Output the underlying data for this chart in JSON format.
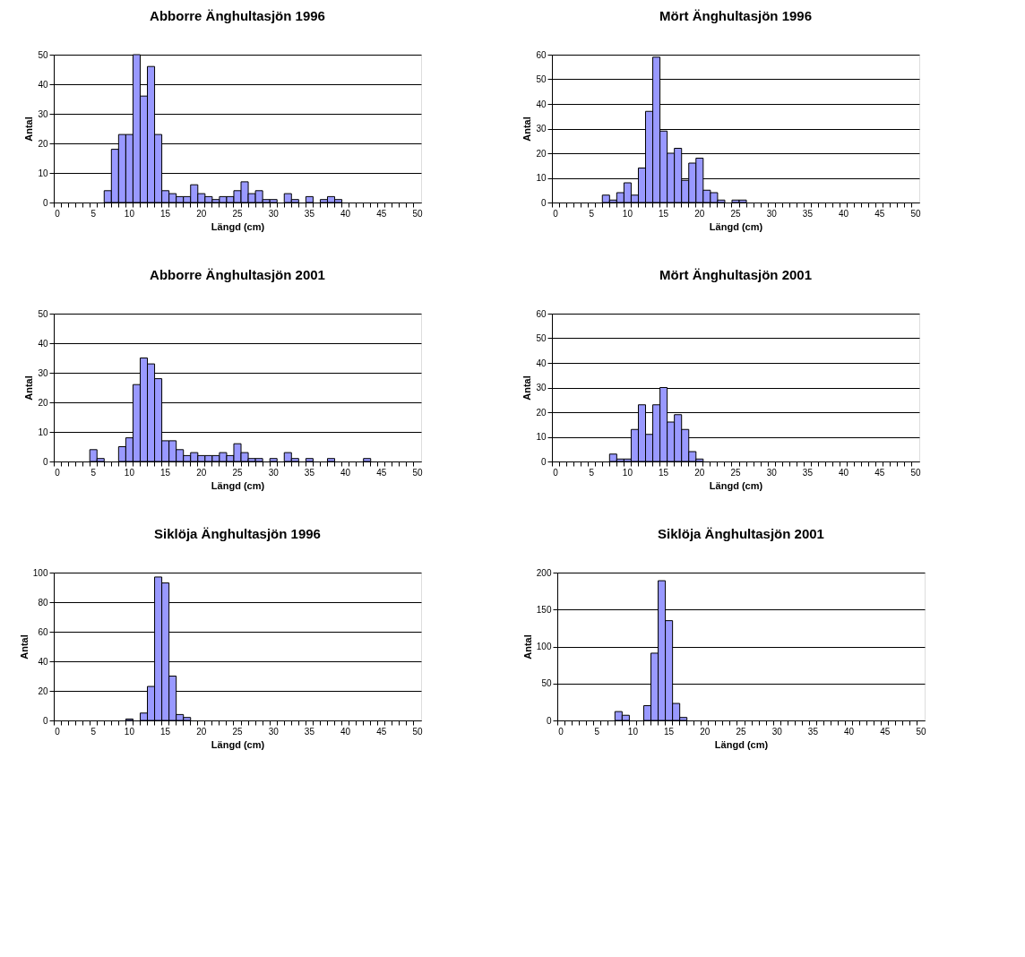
{
  "chart_data": [
    {
      "type": "bar",
      "title": "Abborre Änghultasjön 1996",
      "xlabel": "Längd (cm)",
      "ylabel": "Antal",
      "color": "#9999ff",
      "grid": "y",
      "ylim": [
        0,
        50
      ],
      "yticks": [
        0,
        10,
        20,
        30,
        40,
        50
      ],
      "categories": [
        "0",
        null,
        null,
        null,
        null,
        "5",
        null,
        null,
        null,
        null,
        "10",
        null,
        null,
        null,
        null,
        "15",
        null,
        null,
        null,
        null,
        "20",
        null,
        null,
        null,
        null,
        "25",
        null,
        null,
        null,
        null,
        "30",
        null,
        null,
        null,
        null,
        "35",
        null,
        null,
        null,
        null,
        "40",
        null,
        null,
        null,
        null,
        "45",
        null,
        null,
        null,
        null,
        "50"
      ],
      "values": [
        0,
        0,
        0,
        0,
        0,
        0,
        0,
        4,
        18,
        23,
        23,
        50,
        36,
        46,
        23,
        4,
        3,
        2,
        2,
        6,
        3,
        2,
        1,
        2,
        2,
        4,
        7,
        3,
        4,
        1,
        1,
        0,
        3,
        1,
        0,
        2,
        0,
        1,
        2,
        1,
        0,
        0,
        0,
        0,
        0,
        0,
        0,
        0,
        0,
        0,
        0
      ]
    },
    {
      "type": "bar",
      "title": "Mört Änghultasjön 1996",
      "xlabel": "Längd (cm)",
      "ylabel": "Antal",
      "color": "#9999ff",
      "grid": "y",
      "ylim": [
        0,
        60
      ],
      "yticks": [
        0,
        10,
        20,
        30,
        40,
        50,
        60
      ],
      "categories": [
        "0",
        null,
        null,
        null,
        null,
        "5",
        null,
        null,
        null,
        null,
        "10",
        null,
        null,
        null,
        null,
        "15",
        null,
        null,
        null,
        null,
        "20",
        null,
        null,
        null,
        null,
        "25",
        null,
        null,
        null,
        null,
        "30",
        null,
        null,
        null,
        null,
        "35",
        null,
        null,
        null,
        null,
        "40",
        null,
        null,
        null,
        null,
        "45",
        null,
        null,
        null,
        null,
        "50"
      ],
      "values": [
        0,
        0,
        0,
        0,
        0,
        0,
        0,
        3,
        1,
        4,
        8,
        3,
        14,
        37,
        59,
        29,
        20,
        22,
        9,
        16,
        18,
        5,
        4,
        1,
        0,
        1,
        1,
        0,
        0,
        0,
        0,
        0,
        0,
        0,
        0,
        0,
        0,
        0,
        0,
        0,
        0,
        0,
        0,
        0,
        0,
        0,
        0,
        0,
        0,
        0,
        0
      ]
    },
    {
      "type": "bar",
      "title": "Abborre Änghultasjön 2001",
      "xlabel": "Längd (cm)",
      "ylabel": "Antal",
      "color": "#9999ff",
      "grid": "y",
      "ylim": [
        0,
        50
      ],
      "yticks": [
        0,
        10,
        20,
        30,
        40,
        50
      ],
      "categories": [
        "0",
        null,
        null,
        null,
        null,
        "5",
        null,
        null,
        null,
        null,
        "10",
        null,
        null,
        null,
        null,
        "15",
        null,
        null,
        null,
        null,
        "20",
        null,
        null,
        null,
        null,
        "25",
        null,
        null,
        null,
        null,
        "30",
        null,
        null,
        null,
        null,
        "35",
        null,
        null,
        null,
        null,
        "40",
        null,
        null,
        null,
        null,
        "45",
        null,
        null,
        null,
        null,
        "50"
      ],
      "values": [
        0,
        0,
        0,
        0,
        0,
        4,
        1,
        0,
        0,
        5,
        8,
        26,
        35,
        33,
        28,
        7,
        7,
        4,
        2,
        3,
        2,
        2,
        2,
        3,
        2,
        6,
        3,
        1,
        1,
        0,
        1,
        0,
        3,
        1,
        0,
        1,
        0,
        0,
        1,
        0,
        0,
        0,
        0,
        1,
        0,
        0,
        0,
        0,
        0,
        0,
        0
      ]
    },
    {
      "type": "bar",
      "title": "Mört Änghultasjön 2001",
      "xlabel": "Längd (cm)",
      "ylabel": "Antal",
      "color": "#9999ff",
      "grid": "y",
      "ylim": [
        0,
        60
      ],
      "yticks": [
        0,
        10,
        20,
        30,
        40,
        50,
        60
      ],
      "categories": [
        "0",
        null,
        null,
        null,
        null,
        "5",
        null,
        null,
        null,
        null,
        "10",
        null,
        null,
        null,
        null,
        "15",
        null,
        null,
        null,
        null,
        "20",
        null,
        null,
        null,
        null,
        "25",
        null,
        null,
        null,
        null,
        "30",
        null,
        null,
        null,
        null,
        "35",
        null,
        null,
        null,
        null,
        "40",
        null,
        null,
        null,
        null,
        "45",
        null,
        null,
        null,
        null,
        "50"
      ],
      "values": [
        0,
        0,
        0,
        0,
        0,
        0,
        0,
        0,
        3,
        1,
        1,
        13,
        23,
        11,
        23,
        30,
        16,
        19,
        13,
        4,
        1,
        0,
        0,
        0,
        0,
        0,
        0,
        0,
        0,
        0,
        0,
        0,
        0,
        0,
        0,
        0,
        0,
        0,
        0,
        0,
        0,
        0,
        0,
        0,
        0,
        0,
        0,
        0,
        0,
        0,
        0
      ]
    },
    {
      "type": "bar",
      "title": "Siklöja Änghultasjön 1996",
      "xlabel": "Längd (cm)",
      "ylabel": "Antal",
      "color": "#9999ff",
      "grid": "y",
      "ylim": [
        0,
        100
      ],
      "yticks": [
        0,
        20,
        40,
        60,
        80,
        100
      ],
      "categories": [
        "0",
        null,
        null,
        null,
        null,
        "5",
        null,
        null,
        null,
        null,
        "10",
        null,
        null,
        null,
        null,
        "15",
        null,
        null,
        null,
        null,
        "20",
        null,
        null,
        null,
        null,
        "25",
        null,
        null,
        null,
        null,
        "30",
        null,
        null,
        null,
        null,
        "35",
        null,
        null,
        null,
        null,
        "40",
        null,
        null,
        null,
        null,
        "45",
        null,
        null,
        null,
        null,
        "50"
      ],
      "values": [
        0,
        0,
        0,
        0,
        0,
        0,
        0,
        0,
        0,
        0,
        1,
        0,
        5,
        23,
        97,
        93,
        30,
        4,
        2,
        0,
        0,
        0,
        0,
        0,
        0,
        0,
        0,
        0,
        0,
        0,
        0,
        0,
        0,
        0,
        0,
        0,
        0,
        0,
        0,
        0,
        0,
        0,
        0,
        0,
        0,
        0,
        0,
        0,
        0,
        0,
        0
      ]
    },
    {
      "type": "bar",
      "title": "Siklöja Änghultasjön 2001",
      "xlabel": "Längd (cm)",
      "ylabel": "Antal",
      "color": "#9999ff",
      "grid": "y",
      "ylim": [
        0,
        200
      ],
      "yticks": [
        0,
        50,
        100,
        150,
        200
      ],
      "categories": [
        "0",
        null,
        null,
        null,
        null,
        "5",
        null,
        null,
        null,
        null,
        "10",
        null,
        null,
        null,
        null,
        "15",
        null,
        null,
        null,
        null,
        "20",
        null,
        null,
        null,
        null,
        "25",
        null,
        null,
        null,
        null,
        "30",
        null,
        null,
        null,
        null,
        "35",
        null,
        null,
        null,
        null,
        "40",
        null,
        null,
        null,
        null,
        "45",
        null,
        null,
        null,
        null,
        "50"
      ],
      "values": [
        0,
        0,
        0,
        0,
        0,
        0,
        0,
        0,
        12,
        7,
        0,
        0,
        20,
        91,
        189,
        135,
        23,
        4,
        0,
        0,
        0,
        0,
        0,
        0,
        0,
        0,
        0,
        0,
        0,
        0,
        0,
        0,
        0,
        0,
        0,
        0,
        0,
        0,
        0,
        0,
        0,
        0,
        0,
        0,
        0,
        0,
        0,
        0,
        0,
        0,
        0
      ]
    }
  ]
}
